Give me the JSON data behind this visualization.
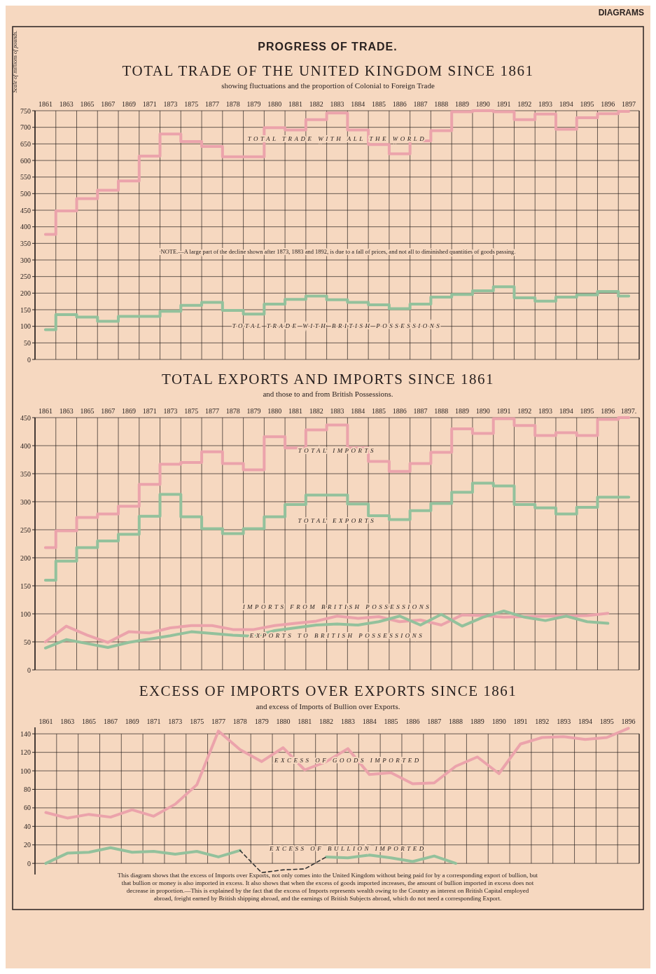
{
  "chart_data": [
    {
      "type": "step",
      "title": "TOTAL TRADE OF THE UNITED KINGDOM SINCE 1861",
      "subtitle": "showing fluctuations and the proportion of Colonial to Foreign Trade",
      "ylabel": "Scale of millions of pounds.",
      "annotations": [
        "DIAGRAMS",
        "PROGRESS OF TRADE.",
        "NOTE.—A large part of the decline shown after 1873, 1883 and 1892, is due to a fall of prices, and not all to diminished quantities of goods passing."
      ],
      "categories": [
        "1861",
        "1863",
        "1865",
        "1867",
        "1869",
        "1871",
        "1873",
        "1875",
        "1877",
        "1878",
        "1879",
        "1880",
        "1881",
        "1882",
        "1883",
        "1884",
        "1885",
        "1886",
        "1887",
        "1888",
        "1889",
        "1890",
        "1891",
        "1892",
        "1893",
        "1894",
        "1895",
        "1896",
        "1897"
      ],
      "series": [
        {
          "name": "TOTAL TRADE WITH ALL THE WORLD",
          "color": "#eba3ab",
          "values": [
            377,
            448,
            485,
            510,
            538,
            613,
            680,
            657,
            642,
            611,
            611,
            699,
            692,
            723,
            743,
            692,
            648,
            620,
            659,
            690,
            747,
            750,
            747,
            723,
            740,
            694,
            729,
            741,
            748
          ]
        },
        {
          "name": "TOTAL TRADE WITH BRITISH POSSESSIONS",
          "color": "#93c19c",
          "values": [
            90,
            135,
            128,
            115,
            130,
            130,
            145,
            163,
            172,
            148,
            137,
            167,
            181,
            191,
            180,
            172,
            165,
            153,
            167,
            188,
            196,
            207,
            219,
            186,
            176,
            188,
            195,
            205,
            191
          ]
        }
      ],
      "ylim": [
        0,
        750
      ],
      "yticks": [
        0,
        50,
        100,
        150,
        200,
        250,
        300,
        350,
        400,
        450,
        500,
        550,
        600,
        650,
        700,
        750
      ],
      "grid": true,
      "legend": false
    },
    {
      "type": "step",
      "title": "TOTAL EXPORTS AND IMPORTS SINCE 1861",
      "subtitle": "and those to and from British Possessions.",
      "categories": [
        "1861",
        "1863",
        "1865",
        "1867",
        "1869",
        "1871",
        "1873",
        "1875",
        "1877",
        "1878",
        "1879",
        "1880",
        "1881",
        "1882",
        "1883",
        "1884",
        "1885",
        "1886",
        "1887",
        "1888",
        "1889",
        "1890",
        "1891",
        "1892",
        "1893",
        "1894",
        "1895",
        "1896",
        "1897."
      ],
      "series": [
        {
          "name": "TOTAL IMPORTS",
          "color": "#eba3ab",
          "values": [
            218,
            248,
            272,
            278,
            292,
            331,
            367,
            370,
            389,
            368,
            357,
            416,
            396,
            428,
            437,
            396,
            372,
            354,
            368,
            388,
            430,
            422,
            448,
            436,
            418,
            423,
            418,
            447,
            450
          ]
        },
        {
          "name": "TOTAL EXPORTS",
          "color": "#93c19c",
          "values": [
            160,
            194,
            218,
            230,
            242,
            274,
            313,
            273,
            252,
            243,
            252,
            273,
            295,
            312,
            312,
            296,
            275,
            268,
            284,
            297,
            317,
            333,
            328,
            295,
            289,
            278,
            290,
            308,
            308
          ]
        },
        {
          "name": "IMPORTS FROM BRITISH POSSESSIONS",
          "type": "line",
          "color": "#eba3ab",
          "values": [
            50,
            78,
            62,
            49,
            68,
            66,
            75,
            79,
            79,
            72,
            72,
            79,
            83,
            87,
            96,
            92,
            95,
            86,
            89,
            80,
            98,
            97,
            94,
            95,
            96,
            96,
            97,
            101,
            null
          ]
        },
        {
          "name": "EXPORTS TO BRITISH POSSESSIONS",
          "type": "line",
          "color": "#93c19c",
          "values": [
            39,
            54,
            47,
            40,
            49,
            55,
            61,
            68,
            65,
            62,
            60,
            70,
            75,
            80,
            82,
            80,
            86,
            96,
            80,
            99,
            78,
            94,
            105,
            94,
            88,
            96,
            86,
            83,
            null
          ]
        }
      ],
      "ylim": [
        0,
        450
      ],
      "yticks": [
        0,
        50,
        100,
        150,
        200,
        250,
        300,
        350,
        400,
        450
      ],
      "grid": true,
      "legend": false
    },
    {
      "type": "line",
      "title": "EXCESS OF IMPORTS OVER EXPORTS SINCE 1861",
      "subtitle": "and excess of Imports of Bullion over Exports.",
      "annotations": [
        "This diagram shows that the excess of Imports over Exports, not only comes into the United Kingdom without being paid for by a corresponding export of bullion, but that bullion or money is also imported in excess. It also shows that when the excess of goods imported increases, the amount of bullion imported in excess does not decrease in proportion.—This is explained by the fact that the excess of Imports represents wealth owing to the Country as interest on British Capital employed abroad, freight earned by British shipping abroad, and the earnings of British Subjects abroad, which do not need a corresponding Export."
      ],
      "categories": [
        "1861",
        "1863",
        "1865",
        "1867",
        "1869",
        "1871",
        "1873",
        "1875",
        "1877",
        "1878",
        "1879",
        "1880",
        "1881",
        "1882",
        "1883",
        "1884",
        "1885",
        "1886",
        "1887",
        "1888",
        "1889",
        "1890",
        "1891",
        "1892",
        "1893",
        "1894",
        "1895",
        "1896"
      ],
      "series": [
        {
          "name": "EXCESS OF GOODS IMPORTED",
          "color": "#eba3ab",
          "values": [
            55,
            49,
            53,
            50,
            58,
            51,
            64,
            85,
            143,
            123,
            110,
            125,
            101,
            110,
            124,
            96,
            98,
            86,
            87,
            105,
            115,
            97,
            129,
            136,
            137,
            134,
            136,
            146
          ]
        },
        {
          "name": "EXCESS OF BULLION IMPORTED",
          "color": "#93c19c",
          "values": [
            0,
            11,
            12,
            17,
            12,
            13,
            10,
            13,
            7,
            14,
            null,
            null,
            null,
            7,
            6,
            9,
            6,
            2,
            8,
            0,
            null,
            null,
            null,
            null,
            null,
            null,
            null,
            null
          ]
        },
        {
          "color": "#333333",
          "line_style": "dashed",
          "values": [
            null,
            null,
            null,
            null,
            null,
            null,
            null,
            null,
            null,
            14,
            -10,
            -7,
            -6,
            7,
            null,
            null,
            null,
            null,
            null,
            null,
            null,
            null,
            null,
            null,
            null,
            null,
            null,
            null
          ]
        }
      ],
      "ylim": [
        -12,
        147
      ],
      "yticks": [
        0,
        20,
        40,
        60,
        80,
        100,
        120,
        140
      ],
      "grid": true,
      "legend": false
    }
  ]
}
